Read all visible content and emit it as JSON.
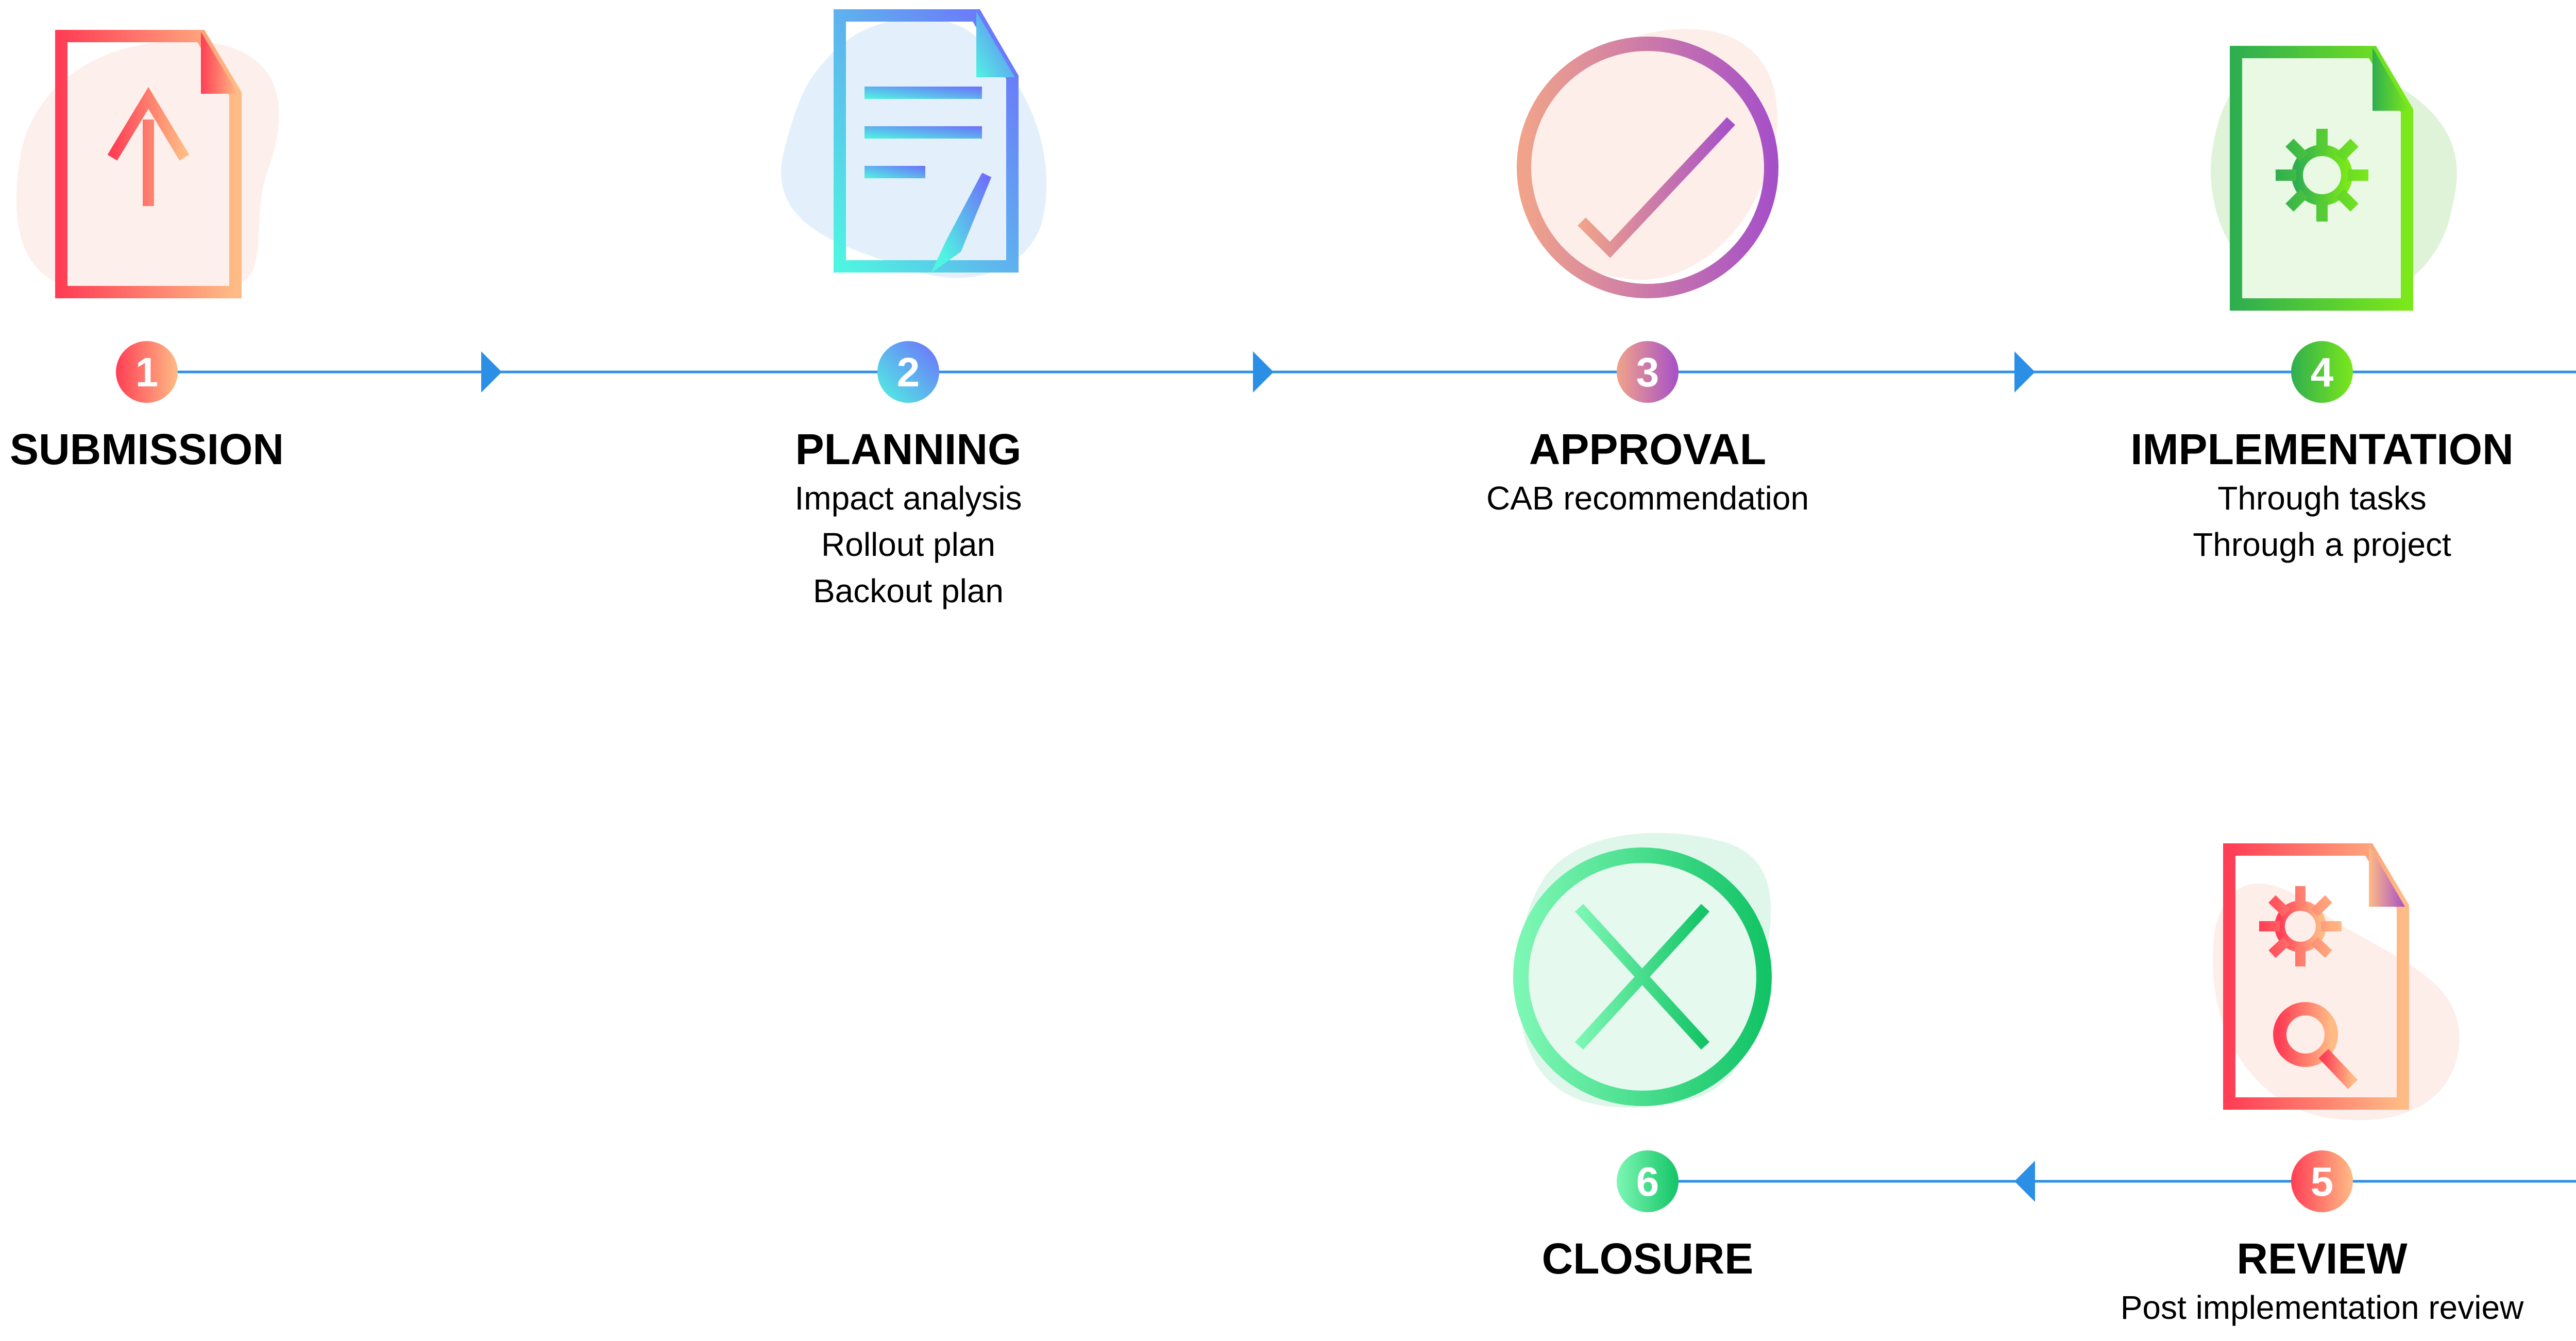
{
  "connector_color": "#2b8fe6",
  "steps": [
    {
      "number": "1",
      "title": "SUBMISSION",
      "details": [],
      "icon": "document-upload-icon",
      "gradient": [
        "#ff3e55",
        "#ffbb85"
      ]
    },
    {
      "number": "2",
      "title": "PLANNING",
      "details": [
        "Impact analysis",
        "Rollout plan",
        "Backout plan"
      ],
      "icon": "document-edit-icon",
      "gradient": [
        "#4ff5e1",
        "#6e6dfc"
      ]
    },
    {
      "number": "3",
      "title": "APPROVAL",
      "details": [
        "CAB recommendation"
      ],
      "icon": "checkmark-circle-icon",
      "gradient": [
        "#f0a38a",
        "#a650c8"
      ]
    },
    {
      "number": "4",
      "title": "IMPLEMENTATION",
      "details": [
        "Through tasks",
        "Through a project"
      ],
      "icon": "document-gear-icon",
      "gradient": [
        "#2fae50",
        "#7be81a"
      ]
    },
    {
      "number": "5",
      "title": "REVIEW",
      "details": [
        "Post implementation review"
      ],
      "icon": "document-gear-search-icon",
      "gradient": [
        "#ff3e55",
        "#ffbb85"
      ]
    },
    {
      "number": "6",
      "title": "CLOSURE",
      "details": [],
      "icon": "x-circle-icon",
      "gradient": [
        "#7df7b4",
        "#13c466"
      ]
    }
  ]
}
